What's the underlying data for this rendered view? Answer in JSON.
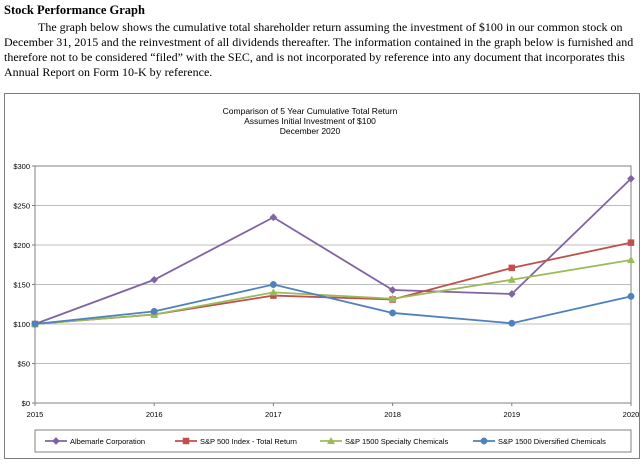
{
  "document": {
    "heading": "Stock Performance Graph",
    "paragraph": "The graph below shows the cumulative total shareholder return assuming the investment of $100 in our common stock on December 31, 2015 and the reinvestment of all dividends thereafter. The information contained in the graph below is furnished and therefore not to be considered “filed” with the SEC, and is not incorporated by reference into any document that incorporates this Annual Report on Form 10-K by reference."
  },
  "chart_data": {
    "type": "line",
    "title": "Comparison of 5 Year Cumulative Total Return",
    "subtitle": "Assumes Initial Investment of $100",
    "subtitle2": "December 2020",
    "xlabel": "",
    "ylabel": "",
    "categories": [
      "2015",
      "2016",
      "2017",
      "2018",
      "2019",
      "2020"
    ],
    "y_ticks": [
      "$0",
      "$50",
      "$100",
      "$150",
      "$200",
      "$250",
      "$300"
    ],
    "ylim": [
      0,
      300
    ],
    "grid": "horizontal",
    "legend_position": "bottom",
    "series": [
      {
        "name": "Albemarle Corporation",
        "color": "#8064a2",
        "marker": "diamond",
        "values": [
          100,
          156,
          235,
          143,
          138,
          284
        ]
      },
      {
        "name": "S&P 500 Index - Total Return",
        "color": "#c0504d",
        "marker": "square",
        "values": [
          100,
          112,
          136,
          131,
          171,
          203
        ]
      },
      {
        "name": "S&P 1500 Specialty Chemicals",
        "color": "#9bbb59",
        "marker": "triangle",
        "values": [
          100,
          112,
          140,
          132,
          156,
          181
        ]
      },
      {
        "name": "S&P 1500 Diversified Chemicals",
        "color": "#4f81bd",
        "marker": "circle",
        "values": [
          100,
          116,
          150,
          114,
          101,
          135
        ]
      }
    ]
  }
}
